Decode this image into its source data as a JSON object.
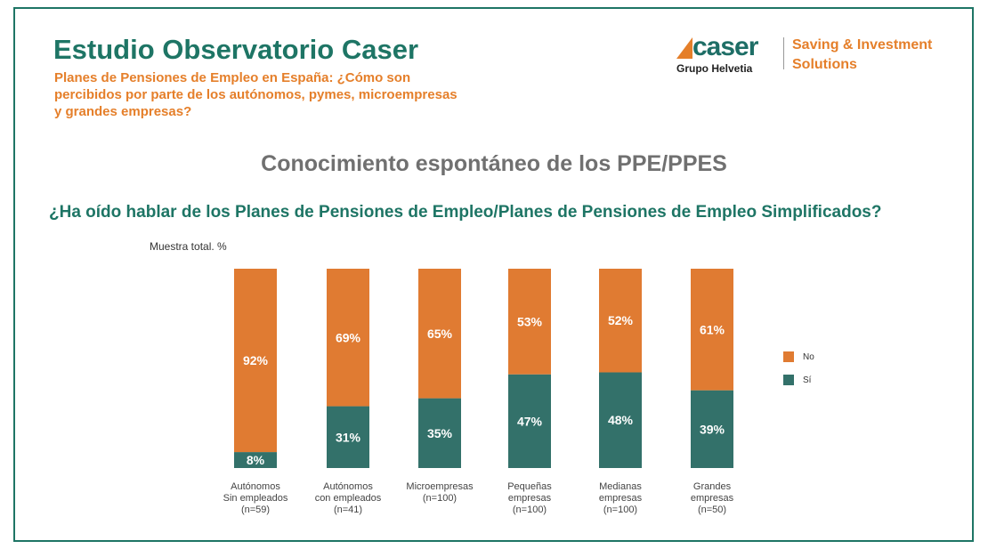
{
  "header": {
    "title": "Estudio Observatorio Caser",
    "subtitle": "Planes de Pensiones de Empleo en España: ¿Cómo son percibidos por parte de los autónomos, pymes, microempresas y grandes empresas?"
  },
  "logo": {
    "brand": "caser",
    "group": "Grupo Helvetia",
    "tagline_1": "Saving & Investment",
    "tagline_2": "Solutions"
  },
  "colors": {
    "no": "#e07b32",
    "si": "#33716a",
    "accent": "#1e7565"
  },
  "chart_data": {
    "type": "bar",
    "stacked": true,
    "title": "Conocimiento espontáneo de los PPE/PPES",
    "question": "¿Ha oído hablar de los Planes de Pensiones de Empleo/Planes de Pensiones de Empleo Simplificados?",
    "ylabel": "Muestra total. %",
    "ylim": [
      0,
      100
    ],
    "categories": [
      [
        "Autónomos",
        "Sin empleados",
        "(n=59)"
      ],
      [
        "Autónomos",
        "con empleados",
        "(n=41)"
      ],
      [
        "Microempresas",
        "(n=100)"
      ],
      [
        "Pequeñas",
        "empresas",
        "(n=100)"
      ],
      [
        "Medianas",
        "empresas",
        "(n=100)"
      ],
      [
        "Grandes",
        "empresas",
        "(n=50)"
      ]
    ],
    "series": [
      {
        "name": "Sí",
        "values": [
          8,
          31,
          35,
          47,
          48,
          39
        ]
      },
      {
        "name": "No",
        "values": [
          92,
          69,
          65,
          53,
          52,
          61
        ]
      }
    ],
    "legend": "right"
  }
}
